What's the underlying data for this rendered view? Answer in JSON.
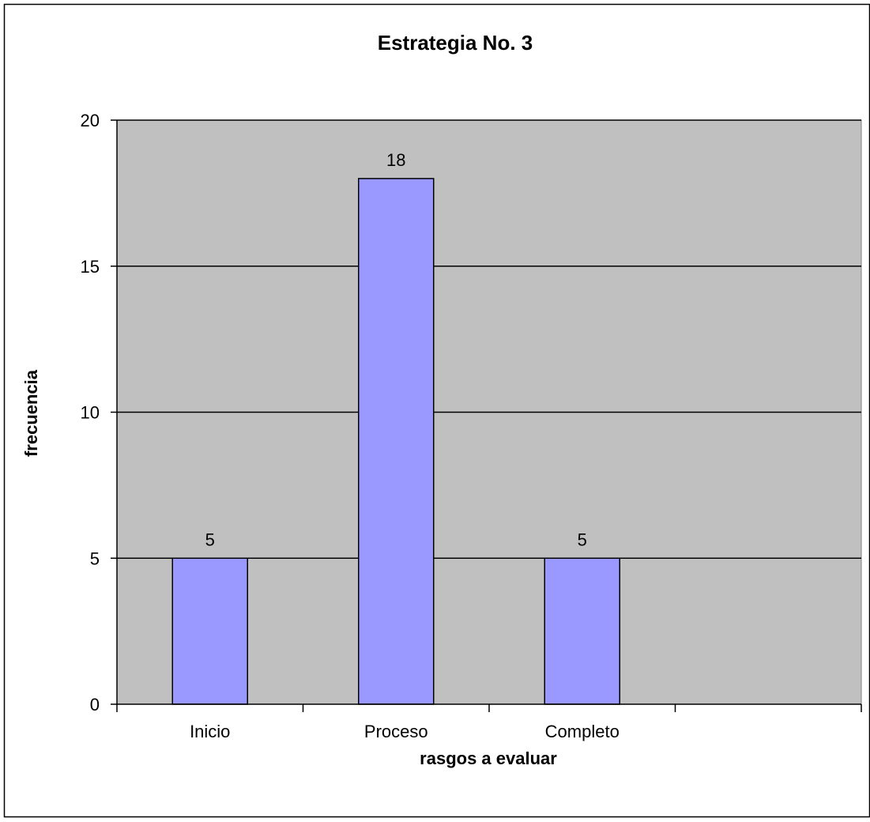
{
  "chart_data": {
    "type": "bar",
    "title": "Estrategia No. 3",
    "xlabel": "rasgos a evaluar",
    "ylabel": "frecuencia",
    "categories": [
      "Inicio",
      "Proceso",
      "Completo",
      ""
    ],
    "values": [
      5,
      18,
      5,
      null
    ],
    "data_labels": [
      "5",
      "18",
      "5",
      ""
    ],
    "ylim": [
      0,
      20
    ],
    "yticks": [
      "0",
      "5",
      "10",
      "15",
      "20"
    ],
    "grid": true,
    "legend": "none",
    "colors": {
      "bar_fill": "#9999ff",
      "bar_stroke": "#000000",
      "plot_background": "#c0c0c0",
      "gridline": "#000000",
      "frame": "#000000"
    }
  }
}
